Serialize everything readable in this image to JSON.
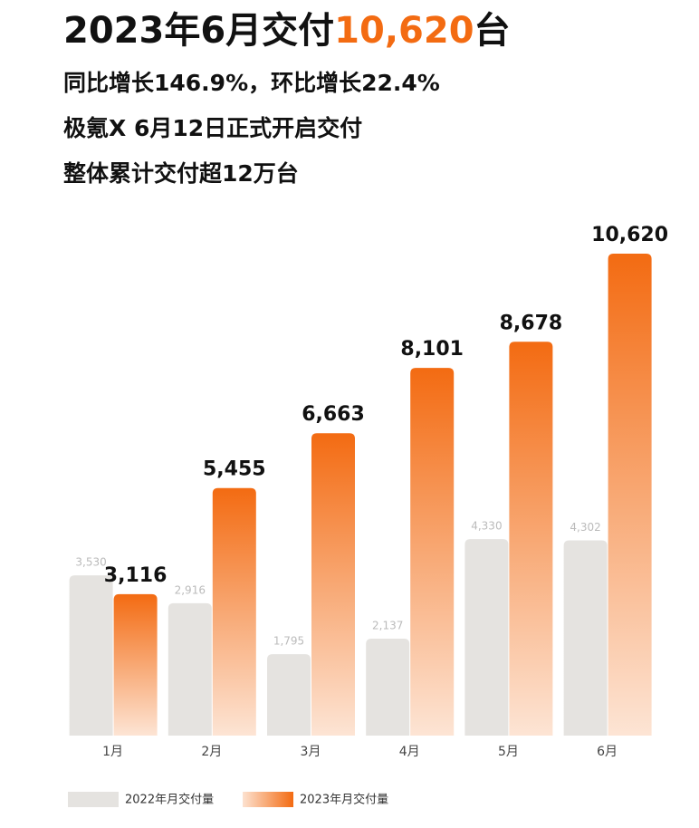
{
  "chart_data": {
    "type": "bar",
    "title_parts": [
      "2023年6月交付",
      "10,620",
      "台"
    ],
    "subtitles": [
      "同比增长146.9%，环比增长22.4%",
      "极氪X 6月12日正式开启交付",
      "整体累计交付超12万台"
    ],
    "categories": [
      "1月",
      "2月",
      "3月",
      "4月",
      "5月",
      "6月"
    ],
    "series": [
      {
        "name": "2022年月交付量",
        "color": "#e5e3e0",
        "values": [
          3530,
          2916,
          1795,
          2137,
          4330,
          4302
        ],
        "value_labels": [
          "3,530",
          "2,916",
          "1,795",
          "2,137",
          "4,330",
          "4,302"
        ]
      },
      {
        "name": "2023年月交付量",
        "color": "#f36b12",
        "values": [
          3116,
          5455,
          6663,
          8101,
          8678,
          10620
        ],
        "value_labels": [
          "3,116",
          "5,455",
          "6,663",
          "8,101",
          "8,678",
          "10,620"
        ]
      }
    ]
  }
}
